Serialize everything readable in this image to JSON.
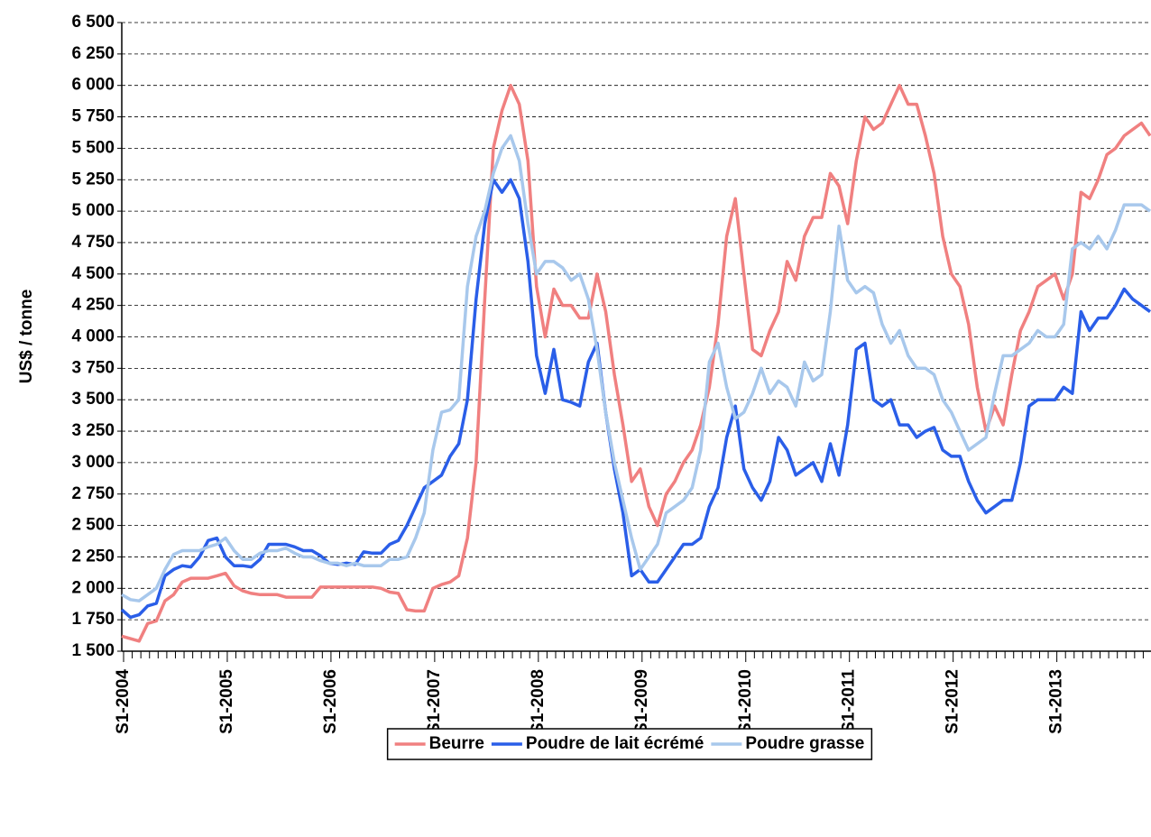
{
  "chart_data": {
    "type": "line",
    "y_label": "US$ / tonne",
    "categories": [
      "S1-2004",
      null,
      null,
      null,
      null,
      null,
      null,
      null,
      null,
      null,
      null,
      null,
      "S1-2005",
      null,
      null,
      null,
      null,
      null,
      null,
      null,
      null,
      null,
      null,
      null,
      "S1-2006",
      null,
      null,
      null,
      null,
      null,
      null,
      null,
      null,
      null,
      null,
      null,
      "S1-2007",
      null,
      null,
      null,
      null,
      null,
      null,
      null,
      null,
      null,
      null,
      null,
      "S1-2008",
      null,
      null,
      null,
      null,
      null,
      null,
      null,
      null,
      null,
      null,
      null,
      "S1-2009",
      null,
      null,
      null,
      null,
      null,
      null,
      null,
      null,
      null,
      null,
      null,
      "S1-2010",
      null,
      null,
      null,
      null,
      null,
      null,
      null,
      null,
      null,
      null,
      null,
      "S1-2011",
      null,
      null,
      null,
      null,
      null,
      null,
      null,
      null,
      null,
      null,
      null,
      "S1-2012",
      null,
      null,
      null,
      null,
      null,
      null,
      null,
      null,
      null,
      null,
      null,
      "S1-2013",
      null,
      null,
      null,
      null,
      null,
      null,
      null,
      null,
      null,
      null,
      null
    ],
    "series": [
      {
        "name": "Beurre",
        "color": "#f08080",
        "values": [
          1620,
          1600,
          1580,
          1720,
          1740,
          1900,
          1950,
          2050,
          2080,
          2080,
          2080,
          2100,
          2120,
          2020,
          1980,
          1960,
          1950,
          1950,
          1950,
          1930,
          1930,
          1930,
          1930,
          2010,
          2010,
          2010,
          2010,
          2010,
          2010,
          2010,
          2000,
          1970,
          1960,
          1830,
          1820,
          1820,
          2000,
          2030,
          2050,
          2100,
          2400,
          3000,
          4300,
          5500,
          5800,
          6000,
          5850,
          5400,
          4400,
          4000,
          4380,
          4250,
          4250,
          4150,
          4150,
          4500,
          4200,
          3700,
          3300,
          2850,
          2950,
          2650,
          2500,
          2750,
          2850,
          3000,
          3100,
          3300,
          3600,
          4100,
          4800,
          5100,
          4500,
          3900,
          3850,
          4050,
          4200,
          4600,
          4450,
          4800,
          4950,
          4950,
          5300,
          5200,
          4900,
          5400,
          5750,
          5650,
          5700,
          5850,
          6000,
          5850,
          5850,
          5600,
          5300,
          4800,
          4500,
          4400,
          4100,
          3600,
          3250,
          3450,
          3300,
          3700,
          4050,
          4200,
          4400,
          4450,
          4500,
          4300,
          4500,
          5150,
          5100,
          5250,
          5450,
          5500,
          5600,
          5650,
          5700,
          5600
        ]
      },
      {
        "name": "Poudre de lait écrémé",
        "color": "#2a5ee8",
        "values": [
          1830,
          1770,
          1790,
          1860,
          1880,
          2100,
          2150,
          2180,
          2170,
          2250,
          2380,
          2400,
          2250,
          2180,
          2180,
          2170,
          2230,
          2350,
          2350,
          2350,
          2330,
          2300,
          2300,
          2260,
          2200,
          2190,
          2200,
          2190,
          2290,
          2280,
          2280,
          2350,
          2380,
          2500,
          2650,
          2800,
          2850,
          2900,
          3050,
          3150,
          3500,
          4300,
          4900,
          5250,
          5150,
          5250,
          5100,
          4600,
          3850,
          3550,
          3900,
          3500,
          3480,
          3450,
          3800,
          3950,
          3400,
          2950,
          2600,
          2100,
          2150,
          2050,
          2050,
          2150,
          2250,
          2350,
          2350,
          2400,
          2650,
          2800,
          3200,
          3450,
          2950,
          2800,
          2700,
          2850,
          3200,
          3100,
          2900,
          2950,
          3000,
          2850,
          3150,
          2900,
          3300,
          3900,
          3950,
          3500,
          3450,
          3500,
          3300,
          3300,
          3200,
          3250,
          3280,
          3100,
          3050,
          3050,
          2850,
          2700,
          2600,
          2650,
          2700,
          2700,
          3000,
          3450,
          3500,
          3500,
          3500,
          3600,
          3550,
          4200,
          4050,
          4150,
          4150,
          4250,
          4380,
          4300,
          4250,
          4200
        ]
      },
      {
        "name": "Poudre grasse",
        "color": "#a8c8ec",
        "values": [
          1950,
          1910,
          1900,
          1950,
          2000,
          2150,
          2270,
          2300,
          2300,
          2300,
          2330,
          2350,
          2400,
          2300,
          2230,
          2230,
          2280,
          2300,
          2300,
          2320,
          2280,
          2250,
          2250,
          2220,
          2200,
          2200,
          2180,
          2200,
          2180,
          2180,
          2180,
          2230,
          2230,
          2250,
          2400,
          2600,
          3100,
          3400,
          3420,
          3500,
          4400,
          4800,
          5000,
          5300,
          5500,
          5600,
          5400,
          4900,
          4500,
          4600,
          4600,
          4550,
          4450,
          4500,
          4300,
          3900,
          3400,
          3000,
          2700,
          2400,
          2150,
          2250,
          2350,
          2600,
          2650,
          2700,
          2800,
          3100,
          3800,
          3950,
          3600,
          3350,
          3400,
          3550,
          3750,
          3550,
          3650,
          3600,
          3450,
          3800,
          3650,
          3700,
          4200,
          4880,
          4450,
          4350,
          4400,
          4350,
          4100,
          3950,
          4050,
          3850,
          3750,
          3750,
          3700,
          3500,
          3400,
          3250,
          3100,
          3150,
          3200,
          3550,
          3850,
          3850,
          3900,
          3950,
          4050,
          4000,
          4000,
          4100,
          4700,
          4750,
          4700,
          4800,
          4700,
          4850,
          5050,
          5050,
          5050,
          5000
        ]
      }
    ],
    "ylim": [
      1500,
      6500
    ],
    "yticks": [
      {
        "value": 1500,
        "label": "1 500"
      },
      {
        "value": 1750,
        "label": "1 750"
      },
      {
        "value": 2000,
        "label": "2 000"
      },
      {
        "value": 2250,
        "label": "2 250"
      },
      {
        "value": 2500,
        "label": "2 500"
      },
      {
        "value": 2750,
        "label": "2 750"
      },
      {
        "value": 3000,
        "label": "3 000"
      },
      {
        "value": 3250,
        "label": "3 250"
      },
      {
        "value": 3500,
        "label": "3 500"
      },
      {
        "value": 3750,
        "label": "3 750"
      },
      {
        "value": 4000,
        "label": "4 000"
      },
      {
        "value": 4250,
        "label": "4 250"
      },
      {
        "value": 4500,
        "label": "4 500"
      },
      {
        "value": 4750,
        "label": "4 750"
      },
      {
        "value": 5000,
        "label": "5 000"
      },
      {
        "value": 5250,
        "label": "5 250"
      },
      {
        "value": 5500,
        "label": "5 500"
      },
      {
        "value": 5750,
        "label": "5 750"
      },
      {
        "value": 6000,
        "label": "6 000"
      },
      {
        "value": 6250,
        "label": "6 250"
      },
      {
        "value": 6500,
        "label": "6 500"
      }
    ],
    "grid": true,
    "legend": "bottom"
  }
}
